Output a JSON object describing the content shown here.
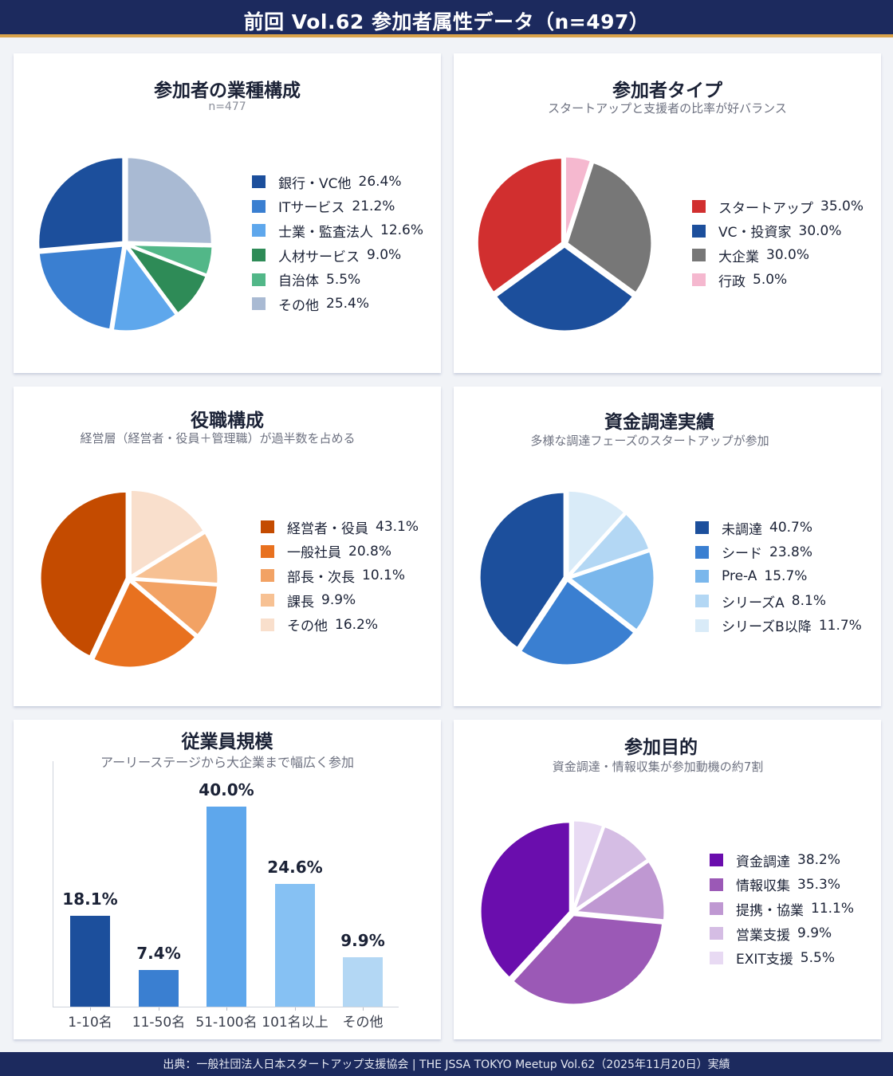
{
  "header": {
    "title": "前回 Vol.62 参加者属性データ（n=497）"
  },
  "footer": {
    "source": "出典：一般社団法人日本スタートアップ支援協会 | THE JSSA TOKYO Meetup Vol.62（2025年11月20日）実績"
  },
  "colors": {
    "header_bg": "#1c2a5e",
    "header_accent": "#d9a24a",
    "page_bg": "#f1f3f7"
  },
  "panels": {
    "industry": {
      "title": "参加者の業種構成",
      "subtitle": "n=477"
    },
    "type": {
      "title": "参加者タイプ",
      "subtitle": "スタートアップと支援者の比率が好バランス"
    },
    "position": {
      "title": "役職構成",
      "subtitle": "経営層（経営者・役員＋管理職）が過半数を占める"
    },
    "funding": {
      "title": "資金調達実績",
      "subtitle": "多様な調達フェーズのスタートアップが参加"
    },
    "employees": {
      "title": "従業員規模",
      "subtitle": "アーリーステージから大企業まで幅広く参加"
    },
    "purpose": {
      "title": "参加目的",
      "subtitle": "資金調達・情報収集が参加動機の約7割"
    }
  },
  "chart_data": [
    {
      "id": "industry",
      "type": "pie",
      "title": "参加者の業種構成",
      "subtitle": "n=477",
      "legend_position": "right",
      "start_angle": "12 o'clock",
      "direction": "counterclockwise",
      "categories": [
        "銀行・VC他",
        "ITサービス",
        "士業・監査法人",
        "人材サービス",
        "自治体",
        "その他"
      ],
      "values": [
        26.4,
        21.2,
        12.6,
        9.0,
        5.5,
        25.4
      ],
      "labels": [
        "26.4%",
        "21.2%",
        "12.6%",
        "9.0%",
        "5.5%",
        "25.4%"
      ],
      "colors": [
        "#1c4f9c",
        "#3a7fd1",
        "#5ea7ec",
        "#2e8b57",
        "#52b788",
        "#a9bad3"
      ]
    },
    {
      "id": "type",
      "type": "pie",
      "title": "参加者タイプ",
      "subtitle": "スタートアップと支援者の比率が好バランス",
      "legend_position": "right",
      "start_angle": "12 o'clock",
      "direction": "counterclockwise",
      "categories": [
        "スタートアップ",
        "VC・投資家",
        "大企業",
        "行政"
      ],
      "values": [
        35.0,
        30.0,
        30.0,
        5.0
      ],
      "labels": [
        "35.0%",
        "30.0%",
        "30.0%",
        "5.0%"
      ],
      "colors": [
        "#d12f2f",
        "#1c4f9c",
        "#777777",
        "#f5b8cf"
      ]
    },
    {
      "id": "position",
      "type": "pie",
      "title": "役職構成",
      "subtitle": "経営層（経営者・役員＋管理職）が過半数を占める",
      "legend_position": "right",
      "start_angle": "12 o'clock",
      "direction": "counterclockwise",
      "categories": [
        "経営者・役員",
        "一般社員",
        "部長・次長",
        "課長",
        "その他"
      ],
      "values": [
        43.1,
        20.8,
        10.1,
        9.9,
        16.2
      ],
      "labels": [
        "43.1%",
        "20.8%",
        "10.1%",
        "9.9%",
        "16.2%"
      ],
      "colors": [
        "#c44b00",
        "#e8711f",
        "#f2a264",
        "#f7c193",
        "#f9dfcc"
      ]
    },
    {
      "id": "funding",
      "type": "pie",
      "title": "資金調達実績",
      "subtitle": "多様な調達フェーズのスタートアップが参加",
      "legend_position": "right",
      "start_angle": "12 o'clock",
      "direction": "counterclockwise",
      "categories": [
        "未調達",
        "シード",
        "Pre-A",
        "シリーズA",
        "シリーズB以降"
      ],
      "values": [
        40.7,
        23.8,
        15.7,
        8.1,
        11.7
      ],
      "labels": [
        "40.7%",
        "23.8%",
        "15.7%",
        "8.1%",
        "11.7%"
      ],
      "colors": [
        "#1c4f9c",
        "#3a7fd1",
        "#7ab7ec",
        "#b3d7f4",
        "#d9ebf8"
      ]
    },
    {
      "id": "employees",
      "type": "bar",
      "title": "従業員規模",
      "subtitle": "アーリーステージから大企業まで幅広く参加",
      "categories": [
        "1-10名",
        "11-50名",
        "51-100名",
        "101名以上",
        "その他"
      ],
      "values": [
        18.1,
        7.4,
        40.0,
        24.6,
        9.9
      ],
      "labels": [
        "18.1%",
        "7.4%",
        "40.0%",
        "24.6%",
        "9.9%"
      ],
      "colors": [
        "#1c4f9c",
        "#3a7fd1",
        "#5ea7ec",
        "#86c1f3",
        "#b3d7f4"
      ],
      "xlabel": "",
      "ylabel": "",
      "ylim": [
        0,
        45
      ],
      "grid": false
    },
    {
      "id": "purpose",
      "type": "pie",
      "title": "参加目的",
      "subtitle": "資金調達・情報収集が参加動機の約7割",
      "legend_position": "right",
      "start_angle": "12 o'clock",
      "direction": "counterclockwise",
      "categories": [
        "資金調達",
        "情報収集",
        "提携・協業",
        "営業支援",
        "EXIT支援"
      ],
      "values": [
        38.2,
        35.3,
        11.1,
        9.9,
        5.5
      ],
      "labels": [
        "38.2%",
        "35.3%",
        "11.1%",
        "9.9%",
        "5.5%"
      ],
      "colors": [
        "#6a0dad",
        "#9b59b6",
        "#bf98d2",
        "#d5bde4",
        "#e8daf3"
      ]
    }
  ]
}
